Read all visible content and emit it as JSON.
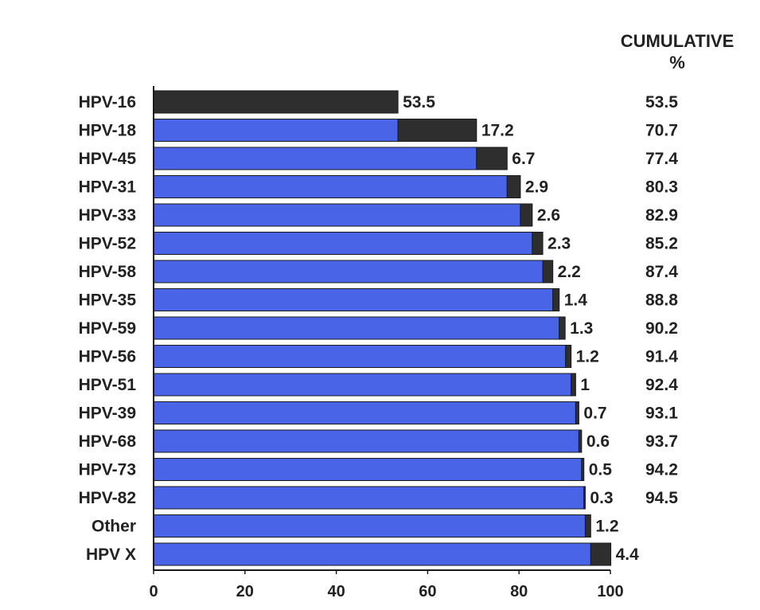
{
  "chart_data": {
    "type": "bar",
    "stacked": true,
    "orientation": "horizontal",
    "title": "",
    "xlabel": "",
    "ylabel": "",
    "xlim": [
      0,
      100
    ],
    "x_ticks": [
      "0",
      "20",
      "40",
      "60",
      "80",
      "100"
    ],
    "grid": false,
    "legend": "none",
    "categories": [
      "HPV-16",
      "HPV-18",
      "HPV-45",
      "HPV-31",
      "HPV-33",
      "HPV-52",
      "HPV-58",
      "HPV-35",
      "HPV-59",
      "HPV-56",
      "HPV-51",
      "HPV-39",
      "HPV-68",
      "HPV-73",
      "HPV-82",
      "Other",
      "HPV X"
    ],
    "series": [
      {
        "color": "#4a64e8",
        "values": [
          0,
          53.5,
          70.7,
          77.4,
          80.3,
          82.9,
          85.2,
          87.4,
          88.8,
          90.2,
          91.4,
          92.4,
          93.1,
          93.7,
          94.2,
          94.5,
          95.7
        ]
      },
      {
        "color": "#2e2e2e",
        "values": [
          53.5,
          17.2,
          6.7,
          2.9,
          2.6,
          2.3,
          2.2,
          1.4,
          1.3,
          1.2,
          1.0,
          0.7,
          0.6,
          0.5,
          0.3,
          1.2,
          4.4
        ]
      }
    ],
    "value_labels": [
      "53.5",
      "17.2",
      "6.7",
      "2.9",
      "2.6",
      "2.3",
      "2.2",
      "1.4",
      "1.3",
      "1.2",
      "1",
      "0.7",
      "0.6",
      "0.5",
      "0.3",
      "1.2",
      "4.4"
    ],
    "cumulative_header": [
      "CUMULATIVE",
      "%"
    ],
    "cumulative_values": [
      "53.5",
      "70.7",
      "77.4",
      "80.3",
      "82.9",
      "85.2",
      "87.4",
      "88.8",
      "90.2",
      "91.4",
      "92.4",
      "93.1",
      "93.7",
      "94.2",
      "94.5",
      "",
      ""
    ]
  }
}
